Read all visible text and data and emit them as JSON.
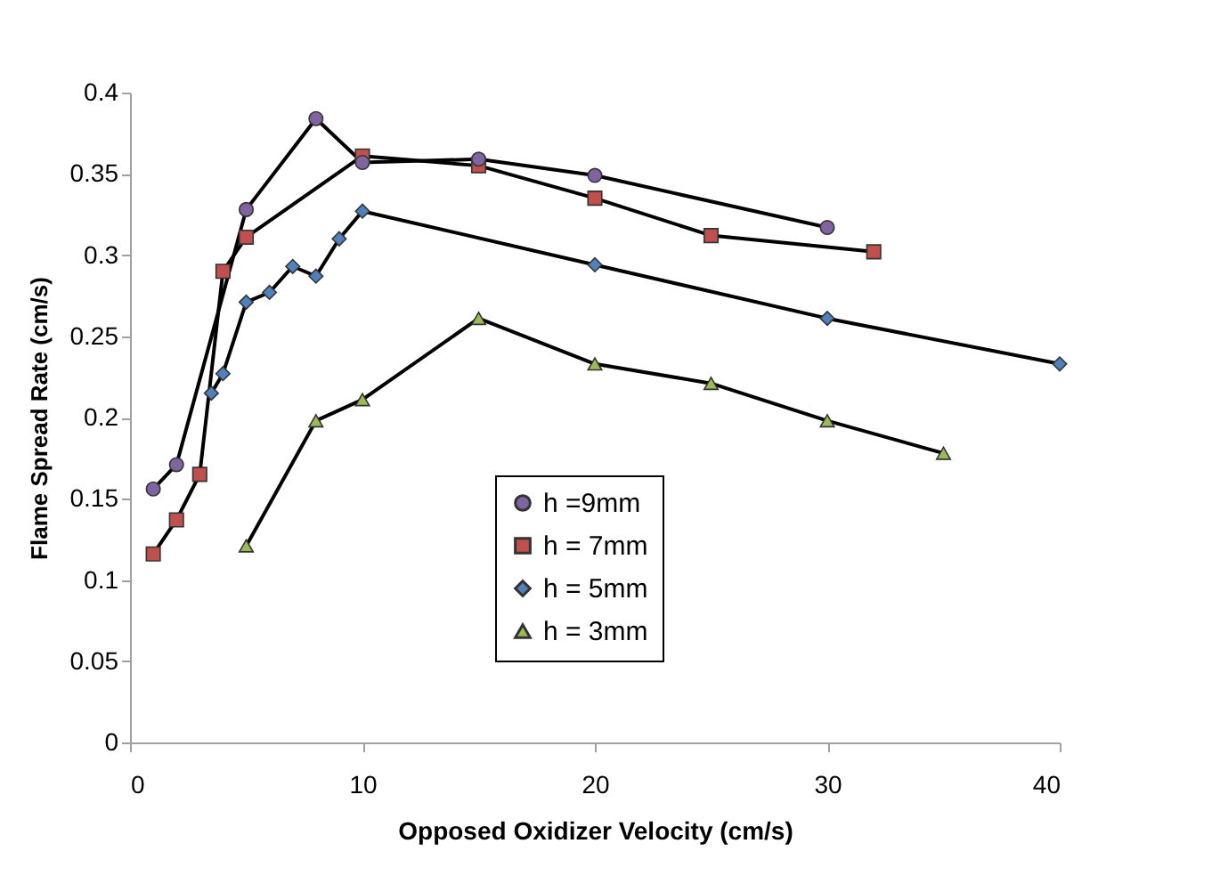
{
  "chart_data": {
    "type": "line",
    "xlabel": "Opposed Oxidizer Velocity (cm/s)",
    "ylabel": "Flame Spread Rate (cm/s)",
    "xlim": [
      0,
      40
    ],
    "xticks": [
      0,
      10,
      20,
      30,
      40
    ],
    "ylim": [
      0,
      0.4
    ],
    "yticks": [
      0,
      0.05,
      0.1,
      0.15,
      0.2,
      0.25,
      0.3,
      0.35,
      0.4
    ],
    "grid": false,
    "legend": "bottom",
    "line_style": "solid",
    "series": [
      {
        "name": "h =9mm",
        "color": "#8064a2",
        "marker": "circle",
        "x": [
          1,
          2,
          5,
          8,
          10,
          15,
          20,
          30
        ],
        "values": [
          0.156,
          0.171,
          0.328,
          0.384,
          0.357,
          0.359,
          0.349,
          0.317
        ]
      },
      {
        "name": "h = 7mm",
        "color": "#c0504d",
        "marker": "square",
        "x": [
          1,
          2,
          3,
          4,
          5,
          10,
          15,
          20,
          25,
          32
        ],
        "values": [
          0.116,
          0.137,
          0.165,
          0.29,
          0.311,
          0.361,
          0.355,
          0.335,
          0.312,
          0.302
        ]
      },
      {
        "name": "h = 5mm",
        "color": "#4f81bd",
        "marker": "diamond",
        "x": [
          3.5,
          4,
          5,
          6,
          7,
          8,
          9,
          10,
          20,
          30,
          40
        ],
        "values": [
          0.215,
          0.227,
          0.271,
          0.277,
          0.293,
          0.287,
          0.31,
          0.327,
          0.294,
          0.261,
          0.233
        ]
      },
      {
        "name": "h = 3mm",
        "color": "#9bbb59",
        "marker": "triangle",
        "x": [
          5,
          8,
          10,
          15,
          20,
          25,
          30,
          35
        ],
        "values": [
          0.121,
          0.198,
          0.211,
          0.261,
          0.233,
          0.221,
          0.198,
          0.178
        ]
      }
    ]
  }
}
